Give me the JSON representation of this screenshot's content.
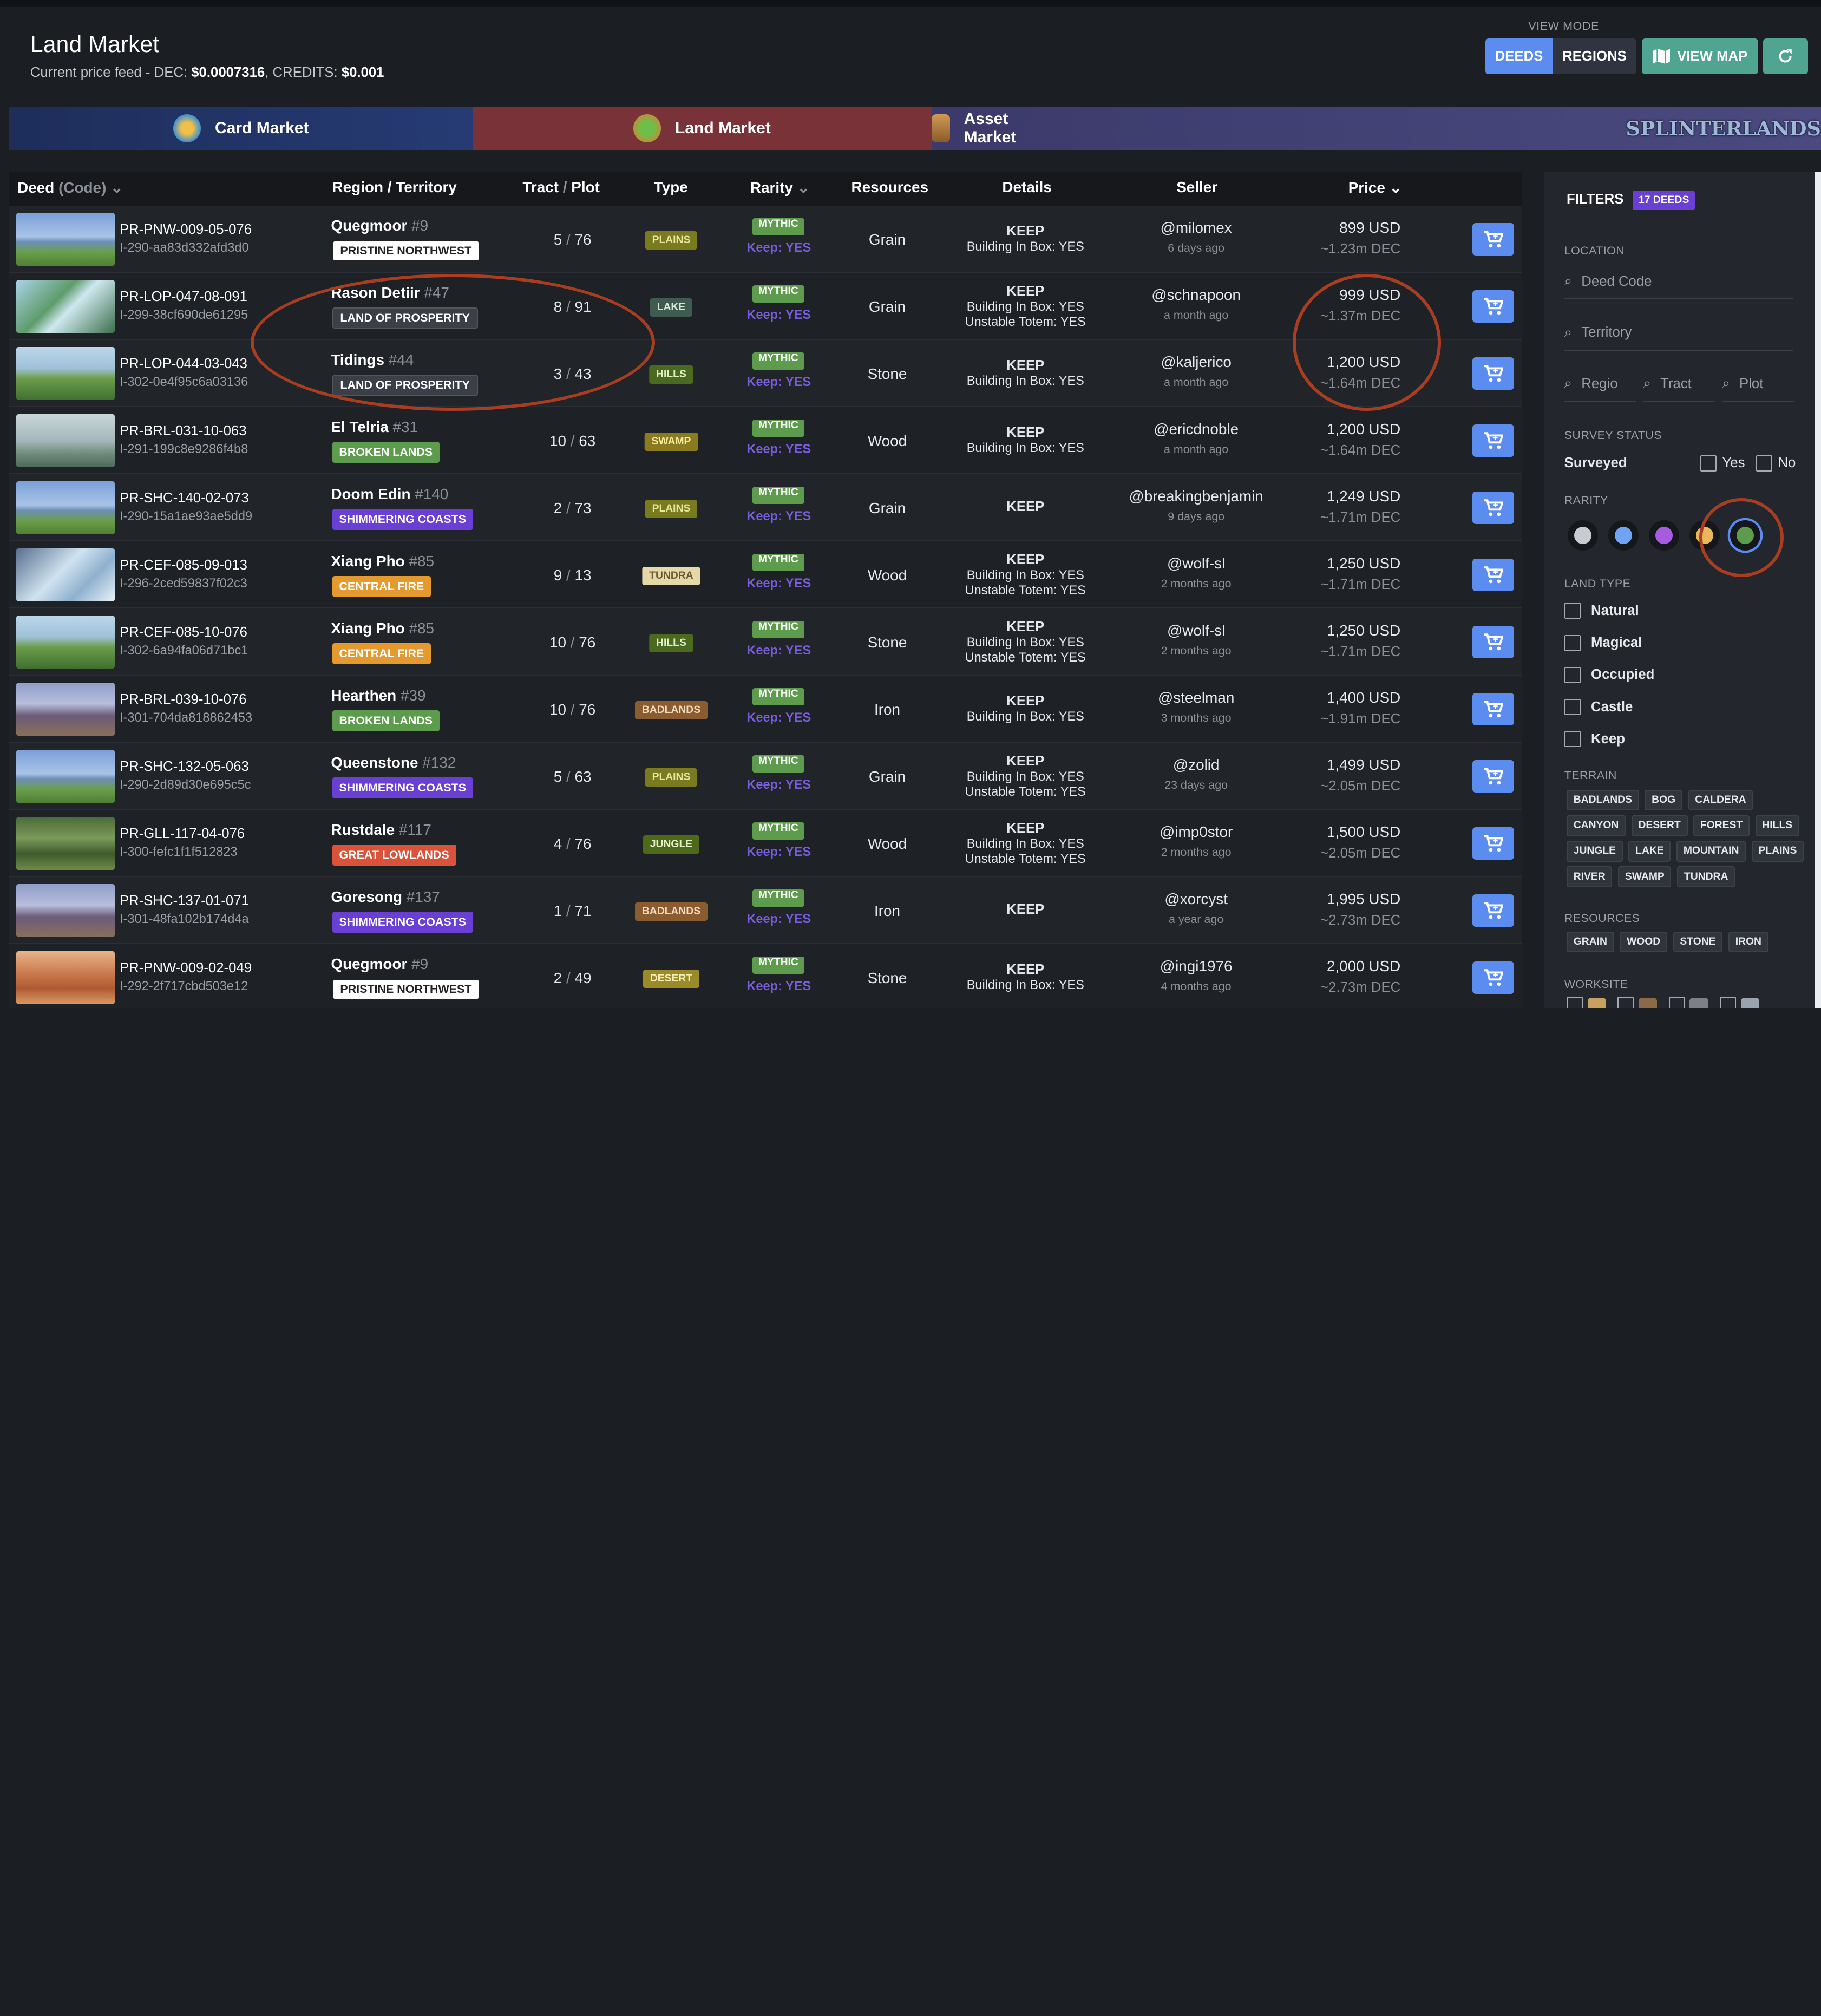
{
  "header": {
    "title": "Land Market",
    "price_prefix": "Current price feed - DEC: ",
    "dec_price": "$0.0007316",
    "credits_prefix": ", CREDITS: ",
    "credits_price": "$0.001"
  },
  "view_mode": {
    "label": "VIEW MODE",
    "deeds": "DEEDS",
    "regions": "REGIONS",
    "view_map": "VIEW MAP"
  },
  "tabs": [
    {
      "label": "Card Market"
    },
    {
      "label": "Land Market"
    },
    {
      "label": "Asset Market"
    },
    {
      "label": "SPLINTERLANDS"
    }
  ],
  "columns": {
    "deed": "Deed",
    "code": "(Code)",
    "region": "Region / Territory",
    "tract": "Tract",
    "plot": "Plot",
    "type": "Type",
    "rarity": "Rarity",
    "resources": "Resources",
    "details": "Details",
    "seller": "Seller",
    "price": "Price"
  },
  "rows": [
    {
      "code": "PR-PNW-009-05-076",
      "uid": "I-290-aa83d332afd3d0",
      "region": "Quegmoor",
      "num": "#9",
      "territory": "PRISTINE NORTHWEST",
      "tract": "5",
      "plot": "76",
      "type": "PLAINS",
      "rarity": "MYTHIC",
      "keep": "Keep: YES",
      "resource": "Grain",
      "d1": "KEEP",
      "d2": "Building In Box: YES",
      "d3": "",
      "seller": "@milomex",
      "ago": "6 days ago",
      "usd": "899 USD",
      "dec": "~1.23m DEC"
    },
    {
      "code": "PR-LOP-047-08-091",
      "uid": "I-299-38cf690de61295",
      "region": "Rason Detiir",
      "num": "#47",
      "territory": "LAND OF PROSPERITY",
      "tract": "8",
      "plot": "91",
      "type": "LAKE",
      "rarity": "MYTHIC",
      "keep": "Keep: YES",
      "resource": "Grain",
      "d1": "KEEP",
      "d2": "Building In Box: YES",
      "d3": "Unstable Totem: YES",
      "seller": "@schnapoon",
      "ago": "a month ago",
      "usd": "999 USD",
      "dec": "~1.37m DEC"
    },
    {
      "code": "PR-LOP-044-03-043",
      "uid": "I-302-0e4f95c6a03136",
      "region": "Tidings",
      "num": "#44",
      "territory": "LAND OF PROSPERITY",
      "tract": "3",
      "plot": "43",
      "type": "HILLS",
      "rarity": "MYTHIC",
      "keep": "Keep: YES",
      "resource": "Stone",
      "d1": "KEEP",
      "d2": "Building In Box: YES",
      "d3": "",
      "seller": "@kaljerico",
      "ago": "a month ago",
      "usd": "1,200 USD",
      "dec": "~1.64m DEC"
    },
    {
      "code": "PR-BRL-031-10-063",
      "uid": "I-291-199c8e9286f4b8",
      "region": "El Telria",
      "num": "#31",
      "territory": "BROKEN LANDS",
      "tract": "10",
      "plot": "63",
      "type": "SWAMP",
      "rarity": "MYTHIC",
      "keep": "Keep: YES",
      "resource": "Wood",
      "d1": "KEEP",
      "d2": "Building In Box: YES",
      "d3": "",
      "seller": "@ericdnoble",
      "ago": "a month ago",
      "usd": "1,200 USD",
      "dec": "~1.64m DEC"
    },
    {
      "code": "PR-SHC-140-02-073",
      "uid": "I-290-15a1ae93ae5dd9",
      "region": "Doom Edin",
      "num": "#140",
      "territory": "SHIMMERING COASTS",
      "tract": "2",
      "plot": "73",
      "type": "PLAINS",
      "rarity": "MYTHIC",
      "keep": "Keep: YES",
      "resource": "Grain",
      "d1": "KEEP",
      "d2": "",
      "d3": "",
      "seller": "@breakingbenjamin",
      "ago": "9 days ago",
      "usd": "1,249 USD",
      "dec": "~1.71m DEC"
    },
    {
      "code": "PR-CEF-085-09-013",
      "uid": "I-296-2ced59837f02c3",
      "region": "Xiang Pho",
      "num": "#85",
      "territory": "CENTRAL FIRE",
      "tract": "9",
      "plot": "13",
      "type": "TUNDRA",
      "rarity": "MYTHIC",
      "keep": "Keep: YES",
      "resource": "Wood",
      "d1": "KEEP",
      "d2": "Building In Box: YES",
      "d3": "Unstable Totem: YES",
      "seller": "@wolf-sl",
      "ago": "2 months ago",
      "usd": "1,250 USD",
      "dec": "~1.71m DEC"
    },
    {
      "code": "PR-CEF-085-10-076",
      "uid": "I-302-6a94fa06d71bc1",
      "region": "Xiang Pho",
      "num": "#85",
      "territory": "CENTRAL FIRE",
      "tract": "10",
      "plot": "76",
      "type": "HILLS",
      "rarity": "MYTHIC",
      "keep": "Keep: YES",
      "resource": "Stone",
      "d1": "KEEP",
      "d2": "Building In Box: YES",
      "d3": "Unstable Totem: YES",
      "seller": "@wolf-sl",
      "ago": "2 months ago",
      "usd": "1,250 USD",
      "dec": "~1.71m DEC"
    },
    {
      "code": "PR-BRL-039-10-076",
      "uid": "I-301-704da818862453",
      "region": "Hearthen",
      "num": "#39",
      "territory": "BROKEN LANDS",
      "tract": "10",
      "plot": "76",
      "type": "BADLANDS",
      "rarity": "MYTHIC",
      "keep": "Keep: YES",
      "resource": "Iron",
      "d1": "KEEP",
      "d2": "Building In Box: YES",
      "d3": "",
      "seller": "@steelman",
      "ago": "3 months ago",
      "usd": "1,400 USD",
      "dec": "~1.91m DEC"
    },
    {
      "code": "PR-SHC-132-05-063",
      "uid": "I-290-2d89d30e695c5c",
      "region": "Queenstone",
      "num": "#132",
      "territory": "SHIMMERING COASTS",
      "tract": "5",
      "plot": "63",
      "type": "PLAINS",
      "rarity": "MYTHIC",
      "keep": "Keep: YES",
      "resource": "Grain",
      "d1": "KEEP",
      "d2": "Building In Box: YES",
      "d3": "Unstable Totem: YES",
      "seller": "@zolid",
      "ago": "23 days ago",
      "usd": "1,499 USD",
      "dec": "~2.05m DEC"
    },
    {
      "code": "PR-GLL-117-04-076",
      "uid": "I-300-fefc1f1f512823",
      "region": "Rustdale",
      "num": "#117",
      "territory": "GREAT LOWLANDS",
      "tract": "4",
      "plot": "76",
      "type": "JUNGLE",
      "rarity": "MYTHIC",
      "keep": "Keep: YES",
      "resource": "Wood",
      "d1": "KEEP",
      "d2": "Building In Box: YES",
      "d3": "Unstable Totem: YES",
      "seller": "@imp0stor",
      "ago": "2 months ago",
      "usd": "1,500 USD",
      "dec": "~2.05m DEC"
    },
    {
      "code": "PR-SHC-137-01-071",
      "uid": "I-301-48fa102b174d4a",
      "region": "Goresong",
      "num": "#137",
      "territory": "SHIMMERING COASTS",
      "tract": "1",
      "plot": "71",
      "type": "BADLANDS",
      "rarity": "MYTHIC",
      "keep": "Keep: YES",
      "resource": "Iron",
      "d1": "KEEP",
      "d2": "",
      "d3": "",
      "seller": "@xorcyst",
      "ago": "a year ago",
      "usd": "1,995 USD",
      "dec": "~2.73m DEC"
    },
    {
      "code": "PR-PNW-009-02-049",
      "uid": "I-292-2f717cbd503e12",
      "region": "Quegmoor",
      "num": "#9",
      "territory": "PRISTINE NORTHWEST",
      "tract": "2",
      "plot": "49",
      "type": "DESERT",
      "rarity": "MYTHIC",
      "keep": "Keep: YES",
      "resource": "Stone",
      "d1": "KEEP",
      "d2": "Building In Box: YES",
      "d3": "",
      "seller": "@ingi1976",
      "ago": "4 months ago",
      "usd": "2,000 USD",
      "dec": "~2.73m DEC"
    }
  ],
  "filters": {
    "title": "FILTERS",
    "count": "17 DEEDS",
    "location": "LOCATION",
    "deed_code_ph": "Deed Code",
    "territory_ph": "Territory",
    "region_ph": "Regio",
    "tract_ph": "Tract",
    "plot_ph": "Plot",
    "survey_status": "SURVEY STATUS",
    "surveyed": "Surveyed",
    "yes": "Yes",
    "no": "No",
    "rarity": "RARITY",
    "rarity_colors": [
      "#c8ccd2",
      "#6fa3f5",
      "#a65be0",
      "#e8b85a",
      "#5c9c4c"
    ],
    "land_type": "LAND TYPE",
    "land_types": [
      "Natural",
      "Magical",
      "Occupied",
      "Castle",
      "Keep"
    ],
    "terrain": "TERRAIN",
    "terrains": [
      "BADLANDS",
      "BOG",
      "CALDERA",
      "CANYON",
      "DESERT",
      "FOREST",
      "HILLS",
      "JUNGLE",
      "LAKE",
      "MOUNTAIN",
      "PLAINS",
      "RIVER",
      "SWAMP",
      "TUNDRA"
    ],
    "resources": "RESOURCES",
    "resource_list": [
      "GRAIN",
      "WOOD",
      "STONE",
      "IRON"
    ],
    "worksite": "WORKSITE"
  },
  "colors": {
    "accent": "#5b8cf0",
    "teal": "#4fa592",
    "annotation": "#a83d22"
  }
}
